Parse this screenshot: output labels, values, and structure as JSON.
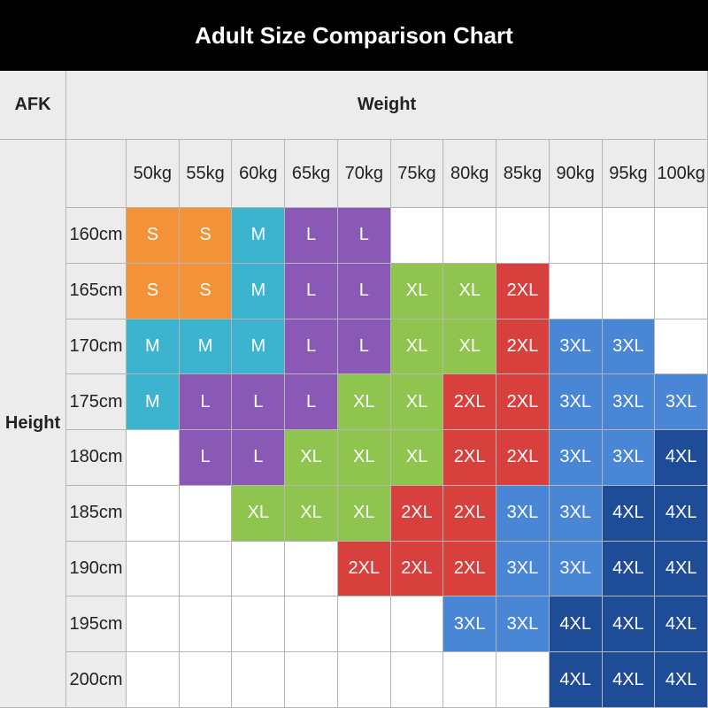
{
  "title": "Adult Size Comparison Chart",
  "corner": "AFK",
  "column_header": "Weight",
  "row_header": "Height",
  "weights": [
    "50kg",
    "55kg",
    "60kg",
    "65kg",
    "70kg",
    "75kg",
    "80kg",
    "85kg",
    "90kg",
    "95kg",
    "100kg"
  ],
  "heights": [
    "160cm",
    "165cm",
    "170cm",
    "175cm",
    "180cm",
    "185cm",
    "190cm",
    "195cm",
    "200cm"
  ],
  "colors": {
    "S": "#f39237",
    "M": "#3cb3cf",
    "L": "#8a58b5",
    "XL": "#8fc44f",
    "2XL": "#d8403e",
    "3XL": "#4a86d6",
    "4XL": "#1f4c96"
  },
  "rows": [
    [
      "S",
      "S",
      "M",
      "L",
      "L",
      null,
      null,
      null,
      null,
      null,
      null
    ],
    [
      "S",
      "S",
      "M",
      "L",
      "L",
      "XL",
      "XL",
      "2XL",
      null,
      null,
      null
    ],
    [
      "M",
      "M",
      "M",
      "L",
      "L",
      "XL",
      "XL",
      "2XL",
      "3XL",
      "3XL",
      null
    ],
    [
      "M",
      "L",
      "L",
      "L",
      "XL",
      "XL",
      "2XL",
      "2XL",
      "3XL",
      "3XL",
      "3XL"
    ],
    [
      null,
      "L",
      "L",
      "XL",
      "XL",
      "XL",
      "2XL",
      "2XL",
      "3XL",
      "3XL",
      "4XL"
    ],
    [
      null,
      null,
      "XL",
      "XL",
      "XL",
      "2XL",
      "2XL",
      "3XL",
      "3XL",
      "4XL",
      "4XL"
    ],
    [
      null,
      null,
      null,
      null,
      "2XL",
      "2XL",
      "2XL",
      "3XL",
      "3XL",
      "4XL",
      "4XL"
    ],
    [
      null,
      null,
      null,
      null,
      null,
      null,
      "3XL",
      "3XL",
      "4XL",
      "4XL",
      "4XL"
    ],
    [
      null,
      null,
      null,
      null,
      null,
      null,
      null,
      null,
      "4XL",
      "4XL",
      "4XL"
    ]
  ]
}
